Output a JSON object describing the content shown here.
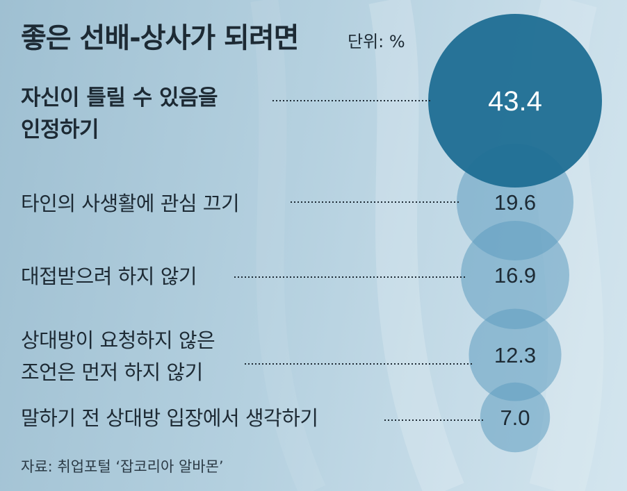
{
  "chart_data": {
    "type": "bubble",
    "title": "좋은 선배-상사가 되려면",
    "unit": "단위: %",
    "categories": [
      [
        "자신이 틀릴 수 있음을",
        "인정하기"
      ],
      [
        "타인의 사생활에 관심 끄기"
      ],
      [
        "대접받으려 하지 않기"
      ],
      [
        "상대방이 요청하지 않은",
        "조언은 먼저 하지 않기"
      ],
      [
        "말하기 전 상대방 입장에서 생각하기"
      ]
    ],
    "values": [
      43.4,
      19.6,
      16.9,
      12.3,
      7.0
    ],
    "value_labels": [
      "43.4",
      "19.6",
      "16.9",
      "12.3",
      "7.0"
    ],
    "source": "자료: 취업포털 ‘잡코리아  알바몬’",
    "colors": {
      "highlight_bubble": "#1f6e94",
      "bubble": "#5f9dbf",
      "highlight_text": "#ffffff",
      "text": "#1d2a34",
      "leader_line": "#1d2a34"
    }
  }
}
